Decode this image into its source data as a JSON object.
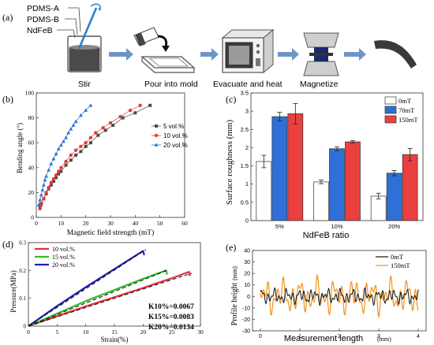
{
  "panel_a": {
    "label": "(a)",
    "materials": [
      "PDMS-A",
      "PDMS-B",
      "NdFeB"
    ],
    "steps": [
      "Stir",
      "Pour into mold",
      "Evacuate and heat",
      "Magnetize"
    ],
    "colors": {
      "arrow": "#6f95c8",
      "container": "#555555",
      "magnet": "#1a2a6a",
      "strip": "#3a3a3a"
    }
  },
  "chart_data": [
    {
      "panel": "(b)",
      "type": "scatter",
      "xlabel": "Magnetic field strength (mT)",
      "ylabel": "Bending angle (°)",
      "xlim": [
        0,
        60
      ],
      "ylim": [
        0,
        100
      ],
      "xticks": [
        0,
        10,
        20,
        30,
        40,
        50,
        60
      ],
      "yticks": [
        0,
        20,
        40,
        60,
        80,
        100
      ],
      "legend": "right",
      "series": [
        {
          "name": "5 vol.%",
          "marker": "square",
          "color": "#4a4a4a",
          "x": [
            1.5,
            2,
            3,
            4,
            5,
            6,
            7,
            8,
            9,
            10,
            12,
            14,
            16,
            18,
            20,
            22,
            25,
            28,
            31,
            35,
            40,
            46
          ],
          "y": [
            8,
            11,
            15,
            19,
            23,
            26,
            29,
            32,
            35,
            37,
            42,
            46,
            50,
            53,
            57,
            60,
            66,
            70,
            74,
            80,
            84,
            90
          ]
        },
        {
          "name": "10 vol.%",
          "marker": "circle",
          "color": "#e23a3a",
          "x": [
            1.5,
            2,
            3,
            4,
            5,
            6,
            7,
            8,
            9,
            10,
            12,
            14,
            16,
            18,
            20,
            22,
            24,
            27,
            30,
            34,
            38,
            42
          ],
          "y": [
            7,
            10,
            15,
            20,
            24,
            28,
            31,
            34,
            37,
            40,
            45,
            50,
            54,
            57,
            60,
            64,
            68,
            72,
            76,
            81,
            86,
            90
          ]
        },
        {
          "name": "20 vol.%",
          "marker": "triangle",
          "color": "#2b6fd6",
          "x": [
            1,
            1.5,
            2,
            2.5,
            3,
            3.5,
            4,
            5,
            6,
            7,
            8,
            9,
            10,
            11,
            12,
            13,
            14,
            15,
            16,
            18,
            20,
            22
          ],
          "y": [
            10,
            14,
            18,
            22,
            26,
            30,
            33,
            38,
            43,
            47,
            51,
            55,
            58,
            61,
            64,
            68,
            71,
            74,
            77,
            82,
            86,
            90
          ]
        }
      ]
    },
    {
      "panel": "(c)",
      "type": "bar",
      "xlabel": "NdFeB ratio",
      "ylabel": "Surface roughness (mm)",
      "ylim": [
        0,
        3.5
      ],
      "yticks": [
        0,
        0.5,
        1.0,
        1.5,
        2.0,
        2.5,
        3.0,
        3.5
      ],
      "categories": [
        "5%",
        "10%",
        "20%"
      ],
      "legend": "top-right",
      "series": [
        {
          "name": "0mT",
          "color": "#ffffff",
          "values": [
            1.62,
            1.06,
            0.67
          ],
          "errors": [
            0.17,
            0.05,
            0.08
          ]
        },
        {
          "name": "70mT",
          "color": "#2f6fd8",
          "values": [
            2.85,
            1.97,
            1.3
          ],
          "errors": [
            0.12,
            0.05,
            0.07
          ]
        },
        {
          "name": "150mT",
          "color": "#ea4040",
          "values": [
            2.93,
            2.16,
            1.81
          ],
          "errors": [
            0.28,
            0.03,
            0.17
          ]
        }
      ]
    },
    {
      "panel": "(d)",
      "type": "line",
      "xlabel": "Strain(%)",
      "ylabel": "Pressure(MPa)",
      "xlim": [
        0,
        30
      ],
      "ylim": [
        0,
        0.3
      ],
      "xticks": [
        0,
        5,
        10,
        15,
        20,
        25,
        30
      ],
      "yticks": [
        0.0,
        0.1,
        0.2,
        0.3
      ],
      "legend": "top-left",
      "series": [
        {
          "name": "10 vol.%",
          "color": "#e0303a",
          "x": [
            0,
            5,
            10,
            15,
            20,
            25,
            28,
            28.2
          ],
          "y": [
            0,
            0.036,
            0.071,
            0.104,
            0.137,
            0.172,
            0.195,
            0.18
          ]
        },
        {
          "name": "15 vol.%",
          "color": "#2ec02e",
          "x": [
            0,
            5,
            10,
            15,
            20,
            24,
            24.2
          ],
          "y": [
            0,
            0.045,
            0.09,
            0.13,
            0.17,
            0.2,
            0.185
          ]
        },
        {
          "name": "20 vol.%",
          "color": "#2020b0",
          "x": [
            0,
            5,
            10,
            15,
            20,
            20.2
          ],
          "y": [
            0,
            0.072,
            0.14,
            0.205,
            0.27,
            0.255
          ]
        }
      ],
      "fits": [
        {
          "x": [
            0,
            28.5
          ],
          "y": [
            0,
            0.19
          ]
        },
        {
          "x": [
            0,
            24.5
          ],
          "y": [
            0,
            0.203
          ]
        },
        {
          "x": [
            0,
            20.5
          ],
          "y": [
            0,
            0.275
          ]
        }
      ],
      "annotations": [
        "K10%=0.0067",
        "K15%=0.0083",
        "K20%=0.0134"
      ]
    },
    {
      "panel": "(e)",
      "type": "line",
      "xlabel": "Measurement length",
      "xlabel_unit": "(mm)",
      "ylabel": "Profile height",
      "ylabel_unit": "(mm)",
      "xlim": [
        -0.2,
        4.2
      ],
      "ylim": [
        -30,
        40
      ],
      "xticks": [
        0,
        1,
        2,
        3,
        4
      ],
      "yticks": [
        -30,
        -20,
        -10,
        0,
        10,
        20,
        30,
        40
      ],
      "legend": "top-right",
      "series": [
        {
          "name": "0mT",
          "color": "#111111"
        },
        {
          "name": "150mT",
          "color": "#f0921a"
        }
      ]
    }
  ]
}
